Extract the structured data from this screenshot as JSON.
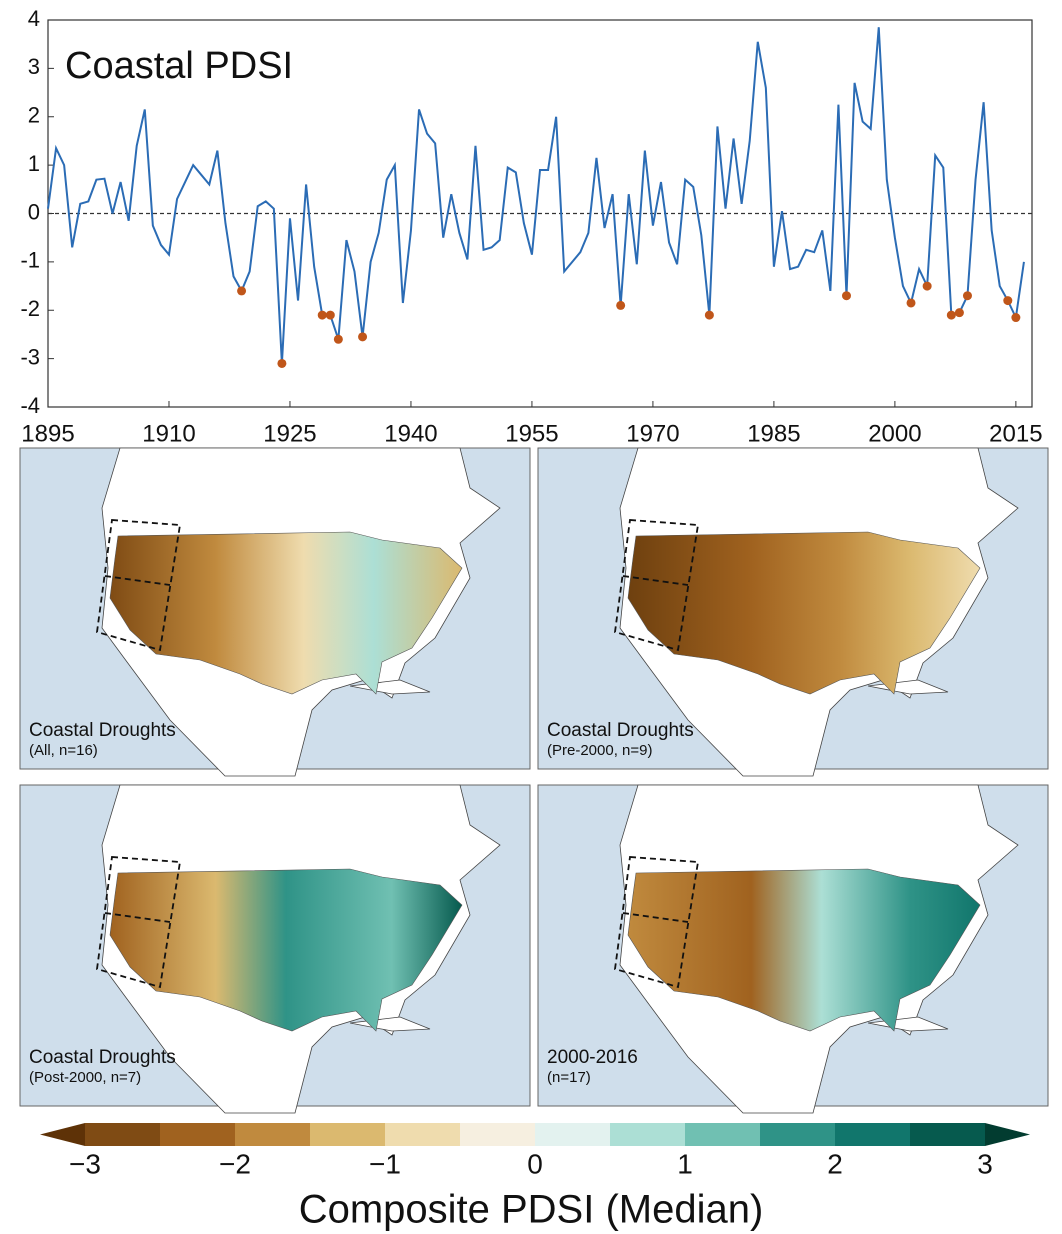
{
  "chart_data": {
    "type": "line",
    "title": "Coastal PDSI",
    "x": [
      1895,
      1896,
      1897,
      1898,
      1899,
      1900,
      1901,
      1902,
      1903,
      1904,
      1905,
      1906,
      1907,
      1908,
      1909,
      1910,
      1911,
      1912,
      1913,
      1914,
      1915,
      1916,
      1917,
      1918,
      1919,
      1920,
      1921,
      1922,
      1923,
      1924,
      1925,
      1926,
      1927,
      1928,
      1929,
      1930,
      1931,
      1932,
      1933,
      1934,
      1935,
      1936,
      1937,
      1938,
      1939,
      1940,
      1941,
      1942,
      1943,
      1944,
      1945,
      1946,
      1947,
      1948,
      1949,
      1950,
      1951,
      1952,
      1953,
      1954,
      1955,
      1956,
      1957,
      1958,
      1959,
      1960,
      1961,
      1962,
      1963,
      1964,
      1965,
      1966,
      1967,
      1968,
      1969,
      1970,
      1971,
      1972,
      1973,
      1974,
      1975,
      1976,
      1977,
      1978,
      1979,
      1980,
      1981,
      1982,
      1983,
      1984,
      1985,
      1986,
      1987,
      1988,
      1989,
      1990,
      1991,
      1992,
      1993,
      1994,
      1995,
      1996,
      1997,
      1998,
      1999,
      2000,
      2001,
      2002,
      2003,
      2004,
      2005,
      2006,
      2007,
      2008,
      2009,
      2010,
      2011,
      2012,
      2013,
      2014,
      2015,
      2016
    ],
    "series": [
      {
        "color": "#2b6cb5",
        "values": [
          0.1,
          1.35,
          1.0,
          -0.7,
          0.2,
          0.25,
          0.7,
          0.72,
          0.0,
          0.65,
          -0.15,
          1.4,
          2.15,
          -0.25,
          -0.65,
          -0.85,
          0.3,
          0.65,
          1.0,
          0.8,
          0.6,
          1.3,
          -0.2,
          -1.3,
          -1.6,
          -1.2,
          0.15,
          0.25,
          0.1,
          -3.1,
          -0.1,
          -1.8,
          0.6,
          -1.1,
          -2.1,
          -2.1,
          -2.6,
          -0.55,
          -1.2,
          -2.55,
          -1.0,
          -0.4,
          0.7,
          1.0,
          -1.85,
          -0.35,
          2.15,
          1.65,
          1.45,
          -0.5,
          0.4,
          -0.4,
          -0.95,
          1.4,
          -0.75,
          -0.7,
          -0.55,
          0.95,
          0.85,
          -0.2,
          -0.85,
          0.9,
          0.9,
          2.0,
          -1.2,
          -1.0,
          -0.8,
          -0.4,
          1.15,
          -0.3,
          0.4,
          -1.9,
          0.4,
          -1.05,
          1.3,
          -0.25,
          0.65,
          -0.6,
          -1.05,
          0.7,
          0.55,
          -0.45,
          -2.1,
          1.8,
          0.1,
          1.55,
          0.2,
          1.5,
          3.55,
          2.6,
          -1.1,
          0.05,
          -1.15,
          -1.1,
          -0.75,
          -0.8,
          -0.35,
          -1.6,
          2.25,
          -1.7,
          2.7,
          1.9,
          1.75,
          3.85,
          0.7,
          -0.5,
          -1.5,
          -1.85,
          -1.15,
          -1.5,
          1.2,
          0.95,
          -2.1,
          -2.05,
          -1.7,
          0.7,
          2.3,
          -0.35,
          -1.5,
          -1.8,
          -2.15,
          -1.0
        ]
      }
    ],
    "drought_years": [
      1919,
      1924,
      1929,
      1930,
      1931,
      1934,
      1966,
      1977,
      1994,
      2002,
      2004,
      2007,
      2008,
      2009,
      2014,
      2015
    ],
    "drought_color": "#c0561a",
    "hline": 0,
    "xlim": [
      1895,
      2017
    ],
    "ylim": [
      -4,
      4
    ],
    "xticks": [
      1895,
      1910,
      1925,
      1940,
      1955,
      1970,
      1985,
      2000,
      2015
    ],
    "yticks": [
      -4,
      -3,
      -2,
      -1,
      0,
      1,
      2,
      3,
      4
    ]
  },
  "maps": [
    {
      "title": "Coastal Droughts",
      "subtitle": "(All, n=16)"
    },
    {
      "title": "Coastal Droughts",
      "subtitle": "(Pre-2000, n=9)"
    },
    {
      "title": "Coastal Droughts",
      "subtitle": "(Post-2000, n=7)"
    },
    {
      "title": "2000-2016",
      "subtitle": "(n=17)"
    }
  ],
  "colorbar": {
    "label": "Composite PDSI (Median)",
    "bounds": [
      -3,
      -2.5,
      -2,
      -1.5,
      -1,
      -0.5,
      0,
      0.5,
      1,
      1.5,
      2,
      2.5,
      3
    ],
    "colors": [
      "#7f4b14",
      "#a0621f",
      "#c08a3e",
      "#dbb96f",
      "#efdcae",
      "#f6efe0",
      "#e3f2ef",
      "#acdfd5",
      "#70c0b2",
      "#2f9387",
      "#11766c",
      "#065a4e"
    ],
    "under_color": "#5e3207",
    "over_color": "#023c30",
    "ticks": [
      {
        "value": -3,
        "label": "−3"
      },
      {
        "value": -2,
        "label": "−2"
      },
      {
        "value": -1,
        "label": "−1"
      },
      0,
      1,
      2,
      3
    ]
  }
}
